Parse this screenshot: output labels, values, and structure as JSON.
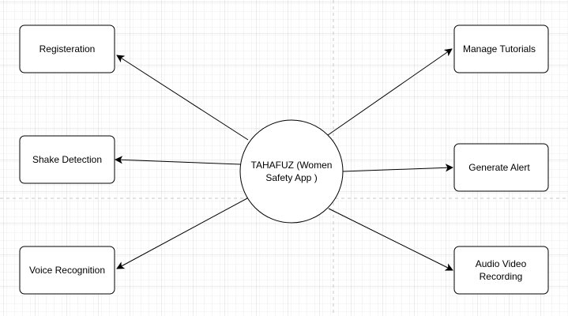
{
  "diagram": {
    "center": {
      "label_line1": "TAHAFUZ (Women",
      "label_line2": "Safety App )"
    },
    "nodes": [
      {
        "id": "registeration",
        "label": "Registeration"
      },
      {
        "id": "shake-detection",
        "label": "Shake Detection"
      },
      {
        "id": "voice-recognition",
        "label": "Voice Recognition"
      },
      {
        "id": "manage-tutorials",
        "label": "Manage Tutorials"
      },
      {
        "id": "generate-alert",
        "label": "Generate Alert"
      },
      {
        "id": "audio-video-recording",
        "label_line1": "Audio Video",
        "label_line2": "Recording"
      }
    ]
  },
  "colors": {
    "stroke": "#000000",
    "grid_minor": "#ececec",
    "grid_major": "#d9d9d9",
    "page_break": "#c8c8c8",
    "fill": "#ffffff"
  }
}
